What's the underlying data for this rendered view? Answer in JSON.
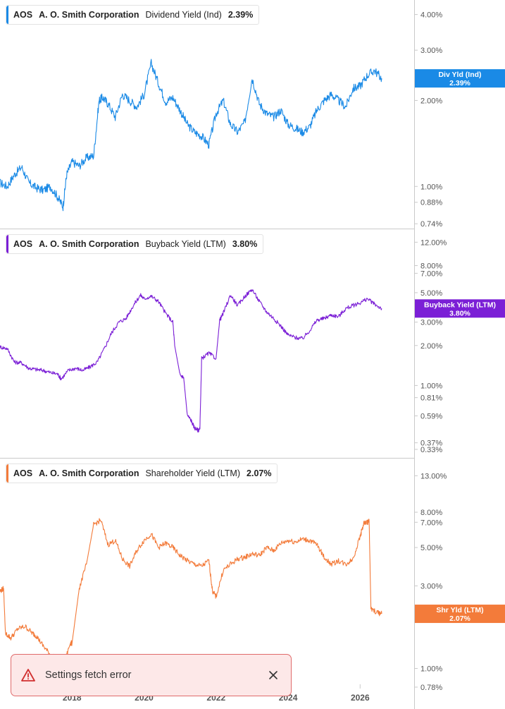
{
  "chart_data": [
    {
      "type": "line",
      "ticker": "AOS",
      "company": "A. O. Smith Corporation",
      "metric": "Dividend Yield (Ind)",
      "current_value": "2.39%",
      "badge_label": "Div Yld (Ind)",
      "color": "#1a8ae6",
      "y_scale": "log",
      "ylim": [
        0.72,
        4.2
      ],
      "y_ticks": [
        4.0,
        3.0,
        2.0,
        1.0,
        0.88,
        0.74
      ],
      "y_tick_labels": [
        "4.00%",
        "3.00%",
        "2.00%",
        "1.00%",
        "0.88%",
        "0.74%"
      ],
      "series": [
        {
          "x": [
            2016.0,
            2016.2,
            2016.4,
            2016.6,
            2016.8,
            2017.0,
            2017.2,
            2017.4,
            2017.6,
            2017.75,
            2017.85,
            2018.0,
            2018.2,
            2018.4,
            2018.6,
            2018.75,
            2018.85,
            2019.0,
            2019.2,
            2019.4,
            2019.6,
            2019.8,
            2020.0,
            2020.2,
            2020.4,
            2020.6,
            2020.8,
            2021.0,
            2021.2,
            2021.4,
            2021.6,
            2021.8,
            2022.0,
            2022.2,
            2022.4,
            2022.6,
            2022.8,
            2023.0,
            2023.2,
            2023.4,
            2023.6,
            2023.8,
            2024.0,
            2024.2,
            2024.4,
            2024.6,
            2024.8,
            2025.0,
            2025.2,
            2025.4,
            2025.6,
            2025.8,
            2026.0,
            2026.2,
            2026.4,
            2026.6
          ],
          "y": [
            1.03,
            1.0,
            1.1,
            1.17,
            1.03,
            0.99,
            0.97,
            1.0,
            0.92,
            0.85,
            1.1,
            1.22,
            1.18,
            1.26,
            1.28,
            2.0,
            2.05,
            1.95,
            1.75,
            2.1,
            2.0,
            1.9,
            2.1,
            2.7,
            2.3,
            1.98,
            2.05,
            1.85,
            1.65,
            1.55,
            1.5,
            1.4,
            1.8,
            2.0,
            1.65,
            1.55,
            1.68,
            2.4,
            1.95,
            1.8,
            1.75,
            1.85,
            1.65,
            1.6,
            1.55,
            1.62,
            1.85,
            2.0,
            2.1,
            2.0,
            1.9,
            2.2,
            2.25,
            2.45,
            2.55,
            2.39
          ]
        }
      ]
    },
    {
      "type": "line",
      "ticker": "AOS",
      "company": "A. O. Smith Corporation",
      "metric": "Buyback Yield (LTM)",
      "current_value": "3.80%",
      "badge_label": "Buyback Yield (LTM)",
      "color": "#7b1fd6",
      "y_scale": "log",
      "ylim": [
        0.33,
        12.5
      ],
      "y_ticks": [
        12.0,
        8.0,
        7.0,
        5.0,
        3.0,
        2.0,
        1.0,
        0.81,
        0.59,
        0.37,
        0.33
      ],
      "y_tick_labels": [
        "12.00%",
        "8.00%",
        "7.00%",
        "5.00%",
        "3.00%",
        "2.00%",
        "1.00%",
        "0.81%",
        "0.59%",
        "0.37%",
        "0.33%"
      ],
      "series": [
        {
          "x": [
            2016.0,
            2016.2,
            2016.4,
            2016.6,
            2016.8,
            2017.0,
            2017.2,
            2017.4,
            2017.6,
            2017.7,
            2017.9,
            2018.1,
            2018.3,
            2018.5,
            2018.7,
            2018.9,
            2019.1,
            2019.3,
            2019.5,
            2019.7,
            2019.9,
            2020.0,
            2020.2,
            2020.4,
            2020.6,
            2020.8,
            2020.85,
            2021.0,
            2021.1,
            2021.2,
            2021.3,
            2021.4,
            2021.5,
            2021.55,
            2021.6,
            2021.8,
            2022.0,
            2022.1,
            2022.2,
            2022.4,
            2022.6,
            2022.8,
            2023.0,
            2023.2,
            2023.4,
            2023.6,
            2023.8,
            2024.0,
            2024.2,
            2024.4,
            2024.6,
            2024.8,
            2025.0,
            2025.2,
            2025.4,
            2025.6,
            2025.8,
            2026.0,
            2026.2,
            2026.4,
            2026.6
          ],
          "y": [
            1.95,
            1.9,
            1.5,
            1.48,
            1.35,
            1.32,
            1.3,
            1.25,
            1.22,
            1.12,
            1.3,
            1.35,
            1.3,
            1.38,
            1.5,
            1.9,
            2.5,
            3.0,
            3.2,
            4.0,
            4.8,
            4.5,
            4.7,
            4.3,
            3.5,
            3.0,
            2.0,
            1.2,
            1.15,
            0.6,
            0.55,
            0.48,
            0.46,
            0.47,
            1.6,
            1.75,
            1.6,
            3.1,
            3.5,
            4.8,
            4.0,
            4.7,
            5.3,
            4.3,
            3.6,
            3.2,
            2.8,
            2.4,
            2.3,
            2.25,
            2.6,
            3.1,
            3.2,
            3.4,
            3.3,
            3.8,
            4.0,
            4.2,
            4.5,
            4.1,
            3.8
          ]
        }
      ]
    },
    {
      "type": "line",
      "ticker": "AOS",
      "company": "A. O. Smith Corporation",
      "metric": "Shareholder Yield (LTM)",
      "current_value": "2.07%",
      "badge_label": "Shr Yld (LTM)",
      "color": "#f37b3a",
      "y_scale": "log",
      "ylim": [
        0.78,
        13.8
      ],
      "y_ticks": [
        13.0,
        8.0,
        7.0,
        5.0,
        3.0,
        2.07,
        1.0,
        0.78
      ],
      "y_tick_labels": [
        "13.00%",
        "8.00%",
        "7.00%",
        "5.00%",
        "3.00%",
        "2.07%",
        "1.00%",
        "0.78%"
      ],
      "series": [
        {
          "x": [
            2016.0,
            2016.1,
            2016.15,
            2016.3,
            2016.5,
            2016.7,
            2016.9,
            2017.0,
            2017.2,
            2017.4,
            2017.6,
            2017.8,
            2017.95,
            2018.0,
            2018.2,
            2018.4,
            2018.6,
            2018.8,
            2019.0,
            2019.2,
            2019.4,
            2019.6,
            2019.8,
            2020.0,
            2020.2,
            2020.4,
            2020.6,
            2020.8,
            2021.0,
            2021.2,
            2021.4,
            2021.6,
            2021.8,
            2021.9,
            2022.0,
            2022.2,
            2022.4,
            2022.6,
            2022.8,
            2023.0,
            2023.2,
            2023.4,
            2023.6,
            2023.8,
            2024.0,
            2024.2,
            2024.4,
            2024.6,
            2024.8,
            2025.0,
            2025.2,
            2025.4,
            2025.6,
            2025.8,
            2026.0,
            2026.1,
            2026.2,
            2026.25,
            2026.3,
            2026.5,
            2026.6
          ],
          "y": [
            2.8,
            2.9,
            1.6,
            1.5,
            1.7,
            1.75,
            1.6,
            1.55,
            1.35,
            1.2,
            1.15,
            1.1,
            1.4,
            1.4,
            2.9,
            4.0,
            6.8,
            7.2,
            5.2,
            5.5,
            4.3,
            3.9,
            4.8,
            5.5,
            6.0,
            5.0,
            5.3,
            5.0,
            4.5,
            4.2,
            4.0,
            3.9,
            4.2,
            2.8,
            2.6,
            3.7,
            4.0,
            4.3,
            4.4,
            4.6,
            4.5,
            5.0,
            4.8,
            5.3,
            5.5,
            5.4,
            5.6,
            5.5,
            5.2,
            4.4,
            4.0,
            4.2,
            4.0,
            4.3,
            5.8,
            6.9,
            7.0,
            7.1,
            2.2,
            2.1,
            2.07
          ]
        }
      ]
    }
  ],
  "x_axis": {
    "ticks": [
      2018,
      2020,
      2022,
      2024,
      2026
    ],
    "labels": [
      "2018",
      "2020",
      "2022",
      "2024",
      "2026"
    ]
  },
  "toast": {
    "message": "Settings fetch error",
    "icon": "warning-triangle-icon",
    "close_icon": "close-icon",
    "border_color": "#e06b6b",
    "background": "#fde8e8"
  }
}
